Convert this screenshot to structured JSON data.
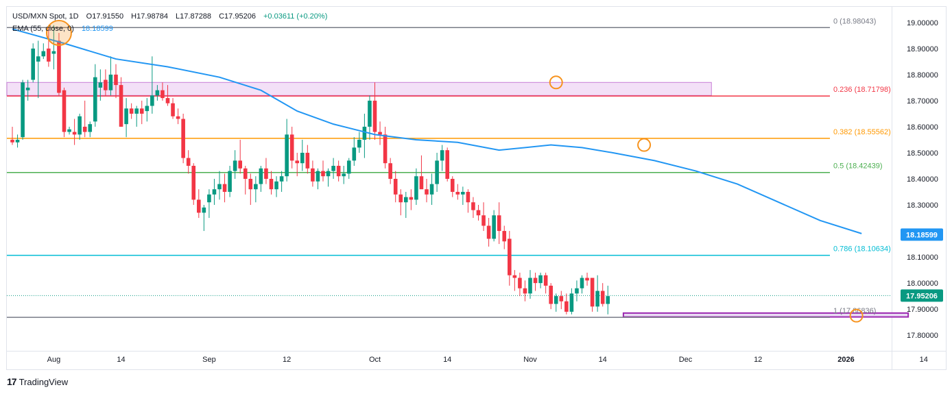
{
  "header": {
    "symbol": "USD/MXN Spot, 1D",
    "open": "O17.91550",
    "high": "H17.98784",
    "low": "L17.87288",
    "close": "C17.95206",
    "change": "+0.03611 (+0.20%)",
    "ema_label": "EMA (55, close, 0)",
    "ema_value": "18.18599"
  },
  "footer": {
    "brand": "TradingView",
    "logo": "17"
  },
  "colors": {
    "up": "#089981",
    "down": "#f23645",
    "ema": "#2196f3",
    "fib0": "#787b86",
    "fib236": "#f23645",
    "fib382": "#ff9800",
    "fib50": "#4caf50",
    "fib786": "#00bcd4",
    "fib1": "#787b86",
    "zone_fill": "#f3e0f7",
    "zone_stroke": "#c77dd6",
    "support_fill": "#e8dcf3",
    "support_stroke": "#9c27b0",
    "circle": "#f7931e"
  },
  "chart_data": {
    "type": "candlestick",
    "title": "USD/MXN Spot, 1D",
    "ylim": [
      17.74,
      19.06
    ],
    "price_ticks": [
      "19.00000",
      "18.90000",
      "18.80000",
      "18.70000",
      "18.60000",
      "18.50000",
      "18.40000",
      "18.30000",
      "18.10000",
      "18.00000",
      "17.90000",
      "17.80000"
    ],
    "price_tick_values": [
      19.0,
      18.9,
      18.8,
      18.7,
      18.6,
      18.5,
      18.4,
      18.3,
      18.1,
      18.0,
      17.9,
      17.8
    ],
    "x_ticks": [
      "Aug",
      "14",
      "Sep",
      "12",
      "Oct",
      "14",
      "Nov",
      "14",
      "Dec",
      "12",
      "2026",
      "14"
    ],
    "x_tick_index": [
      8,
      21,
      38,
      53,
      70,
      84,
      100,
      114,
      130,
      144,
      161,
      176
    ],
    "current_price": {
      "value": 17.95206,
      "label": "17.95206"
    },
    "ema_tag": {
      "value": 18.18599,
      "label": "18.18599"
    },
    "fib_levels": [
      {
        "ratio": "0",
        "value": 18.98043,
        "label": "0 (18.98043)",
        "color": "#787b86"
      },
      {
        "ratio": "0.236",
        "value": 18.71798,
        "label": "0.236 (18.71798)",
        "color": "#f23645"
      },
      {
        "ratio": "0.382",
        "value": 18.55562,
        "label": "0.382 (18.55562)",
        "color": "#ff9800"
      },
      {
        "ratio": "0.5",
        "value": 18.42439,
        "label": "0.5 (18.42439)",
        "color": "#4caf50"
      },
      {
        "ratio": "0.786",
        "value": 18.10634,
        "label": "0.786 (18.10634)",
        "color": "#00bcd4"
      },
      {
        "ratio": "1",
        "value": 17.86836,
        "label": "1 (17.86836)",
        "color": "#787b86"
      }
    ],
    "zones": [
      {
        "name": "resistance",
        "x_start": 0,
        "x_end": 135,
        "y_top": 18.77,
        "y_bottom": 18.72
      },
      {
        "name": "support",
        "x_start": 118,
        "x_end": 173,
        "y_top": 17.885,
        "y_bottom": 17.87
      }
    ],
    "circles": [
      {
        "x": 9,
        "y": 18.96,
        "size": "large"
      },
      {
        "x": 105,
        "y": 18.77,
        "size": "small"
      },
      {
        "x": 122,
        "y": 18.53,
        "size": "small"
      },
      {
        "x": 163,
        "y": 17.875,
        "size": "small"
      }
    ],
    "ema": [
      [
        0,
        18.975
      ],
      [
        10,
        18.92
      ],
      [
        20,
        18.86
      ],
      [
        30,
        18.83
      ],
      [
        40,
        18.79
      ],
      [
        48,
        18.74
      ],
      [
        55,
        18.66
      ],
      [
        62,
        18.61
      ],
      [
        70,
        18.57
      ],
      [
        78,
        18.55
      ],
      [
        86,
        18.54
      ],
      [
        94,
        18.51
      ],
      [
        104,
        18.53
      ],
      [
        110,
        18.52
      ],
      [
        116,
        18.5
      ],
      [
        124,
        18.47
      ],
      [
        132,
        18.43
      ],
      [
        140,
        18.38
      ],
      [
        148,
        18.31
      ],
      [
        156,
        18.24
      ],
      [
        164,
        18.19
      ]
    ],
    "candles": [
      [
        18.55,
        18.6,
        18.53,
        18.54
      ],
      [
        18.54,
        18.57,
        18.52,
        18.55
      ],
      [
        18.56,
        18.78,
        18.55,
        18.77
      ],
      [
        18.74,
        18.78,
        18.7,
        18.75
      ],
      [
        18.78,
        18.92,
        18.77,
        18.9
      ],
      [
        18.85,
        18.93,
        18.71,
        18.87
      ],
      [
        18.87,
        18.92,
        18.86,
        18.89
      ],
      [
        18.9,
        18.99,
        18.83,
        18.85
      ],
      [
        18.88,
        18.99,
        18.82,
        18.89
      ],
      [
        18.93,
        18.96,
        18.72,
        18.73
      ],
      [
        18.74,
        18.75,
        18.56,
        18.58
      ],
      [
        18.58,
        18.6,
        18.57,
        18.59
      ],
      [
        18.58,
        18.63,
        18.53,
        18.57
      ],
      [
        18.57,
        18.65,
        18.55,
        18.64
      ],
      [
        18.6,
        18.7,
        18.56,
        18.58
      ],
      [
        18.58,
        18.62,
        18.56,
        18.61
      ],
      [
        18.62,
        18.84,
        18.6,
        18.79
      ],
      [
        18.75,
        18.82,
        18.7,
        18.77
      ],
      [
        18.78,
        18.82,
        18.72,
        18.74
      ],
      [
        18.74,
        18.87,
        18.72,
        18.8
      ],
      [
        18.8,
        18.84,
        18.71,
        18.76
      ],
      [
        18.76,
        18.79,
        18.6,
        18.6
      ],
      [
        18.61,
        18.71,
        18.56,
        18.67
      ],
      [
        18.67,
        18.69,
        18.63,
        18.65
      ],
      [
        18.65,
        18.68,
        18.6,
        18.67
      ],
      [
        18.67,
        18.7,
        18.61,
        18.65
      ],
      [
        18.66,
        18.71,
        18.62,
        18.68
      ],
      [
        18.68,
        18.87,
        18.65,
        18.72
      ],
      [
        18.72,
        18.76,
        18.7,
        18.74
      ],
      [
        18.74,
        18.77,
        18.7,
        18.71
      ],
      [
        18.71,
        18.76,
        18.68,
        18.69
      ],
      [
        18.69,
        18.71,
        18.63,
        18.64
      ],
      [
        18.64,
        18.67,
        18.61,
        18.63
      ],
      [
        18.63,
        18.65,
        18.46,
        18.48
      ],
      [
        18.48,
        18.51,
        18.42,
        18.45
      ],
      [
        18.45,
        18.46,
        18.3,
        18.32
      ],
      [
        18.32,
        18.36,
        18.25,
        18.27
      ],
      [
        18.27,
        18.3,
        18.2,
        18.29
      ],
      [
        18.31,
        18.36,
        18.25,
        18.34
      ],
      [
        18.34,
        18.4,
        18.3,
        18.36
      ],
      [
        18.36,
        18.43,
        18.32,
        18.38
      ],
      [
        18.38,
        18.42,
        18.31,
        18.35
      ],
      [
        18.35,
        18.45,
        18.33,
        18.43
      ],
      [
        18.43,
        18.51,
        18.4,
        18.47
      ],
      [
        18.47,
        18.55,
        18.42,
        18.44
      ],
      [
        18.44,
        18.45,
        18.34,
        18.4
      ],
      [
        18.4,
        18.42,
        18.3,
        18.36
      ],
      [
        18.36,
        18.41,
        18.31,
        18.38
      ],
      [
        18.38,
        18.45,
        18.35,
        18.44
      ],
      [
        18.44,
        18.48,
        18.38,
        18.4
      ],
      [
        18.4,
        18.43,
        18.34,
        18.36
      ],
      [
        18.36,
        18.41,
        18.33,
        18.39
      ],
      [
        18.39,
        18.43,
        18.35,
        18.41
      ],
      [
        18.41,
        18.63,
        18.39,
        18.57
      ],
      [
        18.57,
        18.6,
        18.44,
        18.47
      ],
      [
        18.47,
        18.5,
        18.41,
        18.46
      ],
      [
        18.46,
        18.55,
        18.43,
        18.5
      ],
      [
        18.5,
        18.53,
        18.42,
        18.44
      ],
      [
        18.44,
        18.47,
        18.37,
        18.39
      ],
      [
        18.39,
        18.44,
        18.36,
        18.43
      ],
      [
        18.43,
        18.47,
        18.39,
        18.41
      ],
      [
        18.41,
        18.44,
        18.37,
        18.43
      ],
      [
        18.43,
        18.48,
        18.4,
        18.45
      ],
      [
        18.45,
        18.47,
        18.39,
        18.41
      ],
      [
        18.41,
        18.45,
        18.38,
        18.42
      ],
      [
        18.42,
        18.48,
        18.4,
        18.47
      ],
      [
        18.47,
        18.56,
        18.45,
        18.52
      ],
      [
        18.52,
        18.58,
        18.5,
        18.55
      ],
      [
        18.55,
        18.65,
        18.48,
        18.6
      ],
      [
        18.6,
        18.72,
        18.55,
        18.7
      ],
      [
        18.7,
        18.77,
        18.55,
        18.58
      ],
      [
        18.58,
        18.62,
        18.53,
        18.57
      ],
      [
        18.57,
        18.6,
        18.44,
        18.46
      ],
      [
        18.46,
        18.48,
        18.38,
        18.4
      ],
      [
        18.4,
        18.43,
        18.31,
        18.34
      ],
      [
        18.34,
        18.36,
        18.26,
        18.31
      ],
      [
        18.31,
        18.35,
        18.25,
        18.33
      ],
      [
        18.33,
        18.36,
        18.28,
        18.32
      ],
      [
        18.32,
        18.44,
        18.3,
        18.41
      ],
      [
        18.41,
        18.49,
        18.37,
        18.36
      ],
      [
        18.36,
        18.4,
        18.31,
        18.34
      ],
      [
        18.34,
        18.42,
        18.3,
        18.38
      ],
      [
        18.38,
        18.5,
        18.35,
        18.47
      ],
      [
        18.47,
        18.53,
        18.43,
        18.51
      ],
      [
        18.51,
        18.52,
        18.39,
        18.4
      ],
      [
        18.4,
        18.41,
        18.33,
        18.35
      ],
      [
        18.35,
        18.38,
        18.32,
        18.34
      ],
      [
        18.34,
        18.37,
        18.3,
        18.35
      ],
      [
        18.35,
        18.36,
        18.27,
        18.31
      ],
      [
        18.31,
        18.33,
        18.25,
        18.28
      ],
      [
        18.28,
        18.3,
        18.24,
        18.26
      ],
      [
        18.26,
        18.31,
        18.2,
        18.22
      ],
      [
        18.22,
        18.25,
        18.14,
        18.17
      ],
      [
        18.17,
        18.28,
        18.16,
        18.26
      ],
      [
        18.26,
        18.31,
        18.15,
        18.2
      ],
      [
        18.2,
        18.22,
        18.13,
        18.16
      ],
      [
        18.17,
        18.2,
        17.99,
        18.03
      ],
      [
        18.03,
        18.05,
        17.97,
        18.02
      ],
      [
        18.02,
        18.04,
        17.95,
        17.98
      ],
      [
        17.98,
        18.01,
        17.93,
        17.96
      ],
      [
        17.96,
        18.05,
        17.94,
        18.02
      ],
      [
        18.02,
        18.04,
        17.97,
        18.0
      ],
      [
        18.0,
        18.04,
        17.98,
        18.03
      ],
      [
        18.03,
        18.04,
        17.96,
        17.99
      ],
      [
        17.99,
        18.0,
        17.9,
        17.92
      ],
      [
        17.92,
        17.96,
        17.89,
        17.95
      ],
      [
        17.95,
        17.97,
        17.9,
        17.93
      ],
      [
        17.93,
        17.96,
        17.88,
        17.89
      ],
      [
        17.89,
        17.98,
        17.88,
        17.96
      ],
      [
        17.96,
        18.01,
        17.93,
        17.98
      ],
      [
        17.98,
        18.03,
        17.96,
        18.02
      ],
      [
        18.02,
        18.04,
        17.99,
        18.01
      ],
      [
        18.02,
        18.02,
        17.89,
        17.91
      ],
      [
        17.91,
        18.03,
        17.89,
        17.97
      ],
      [
        17.97,
        18.0,
        17.91,
        17.92
      ],
      [
        17.92,
        17.99,
        17.88,
        17.95
      ]
    ]
  }
}
